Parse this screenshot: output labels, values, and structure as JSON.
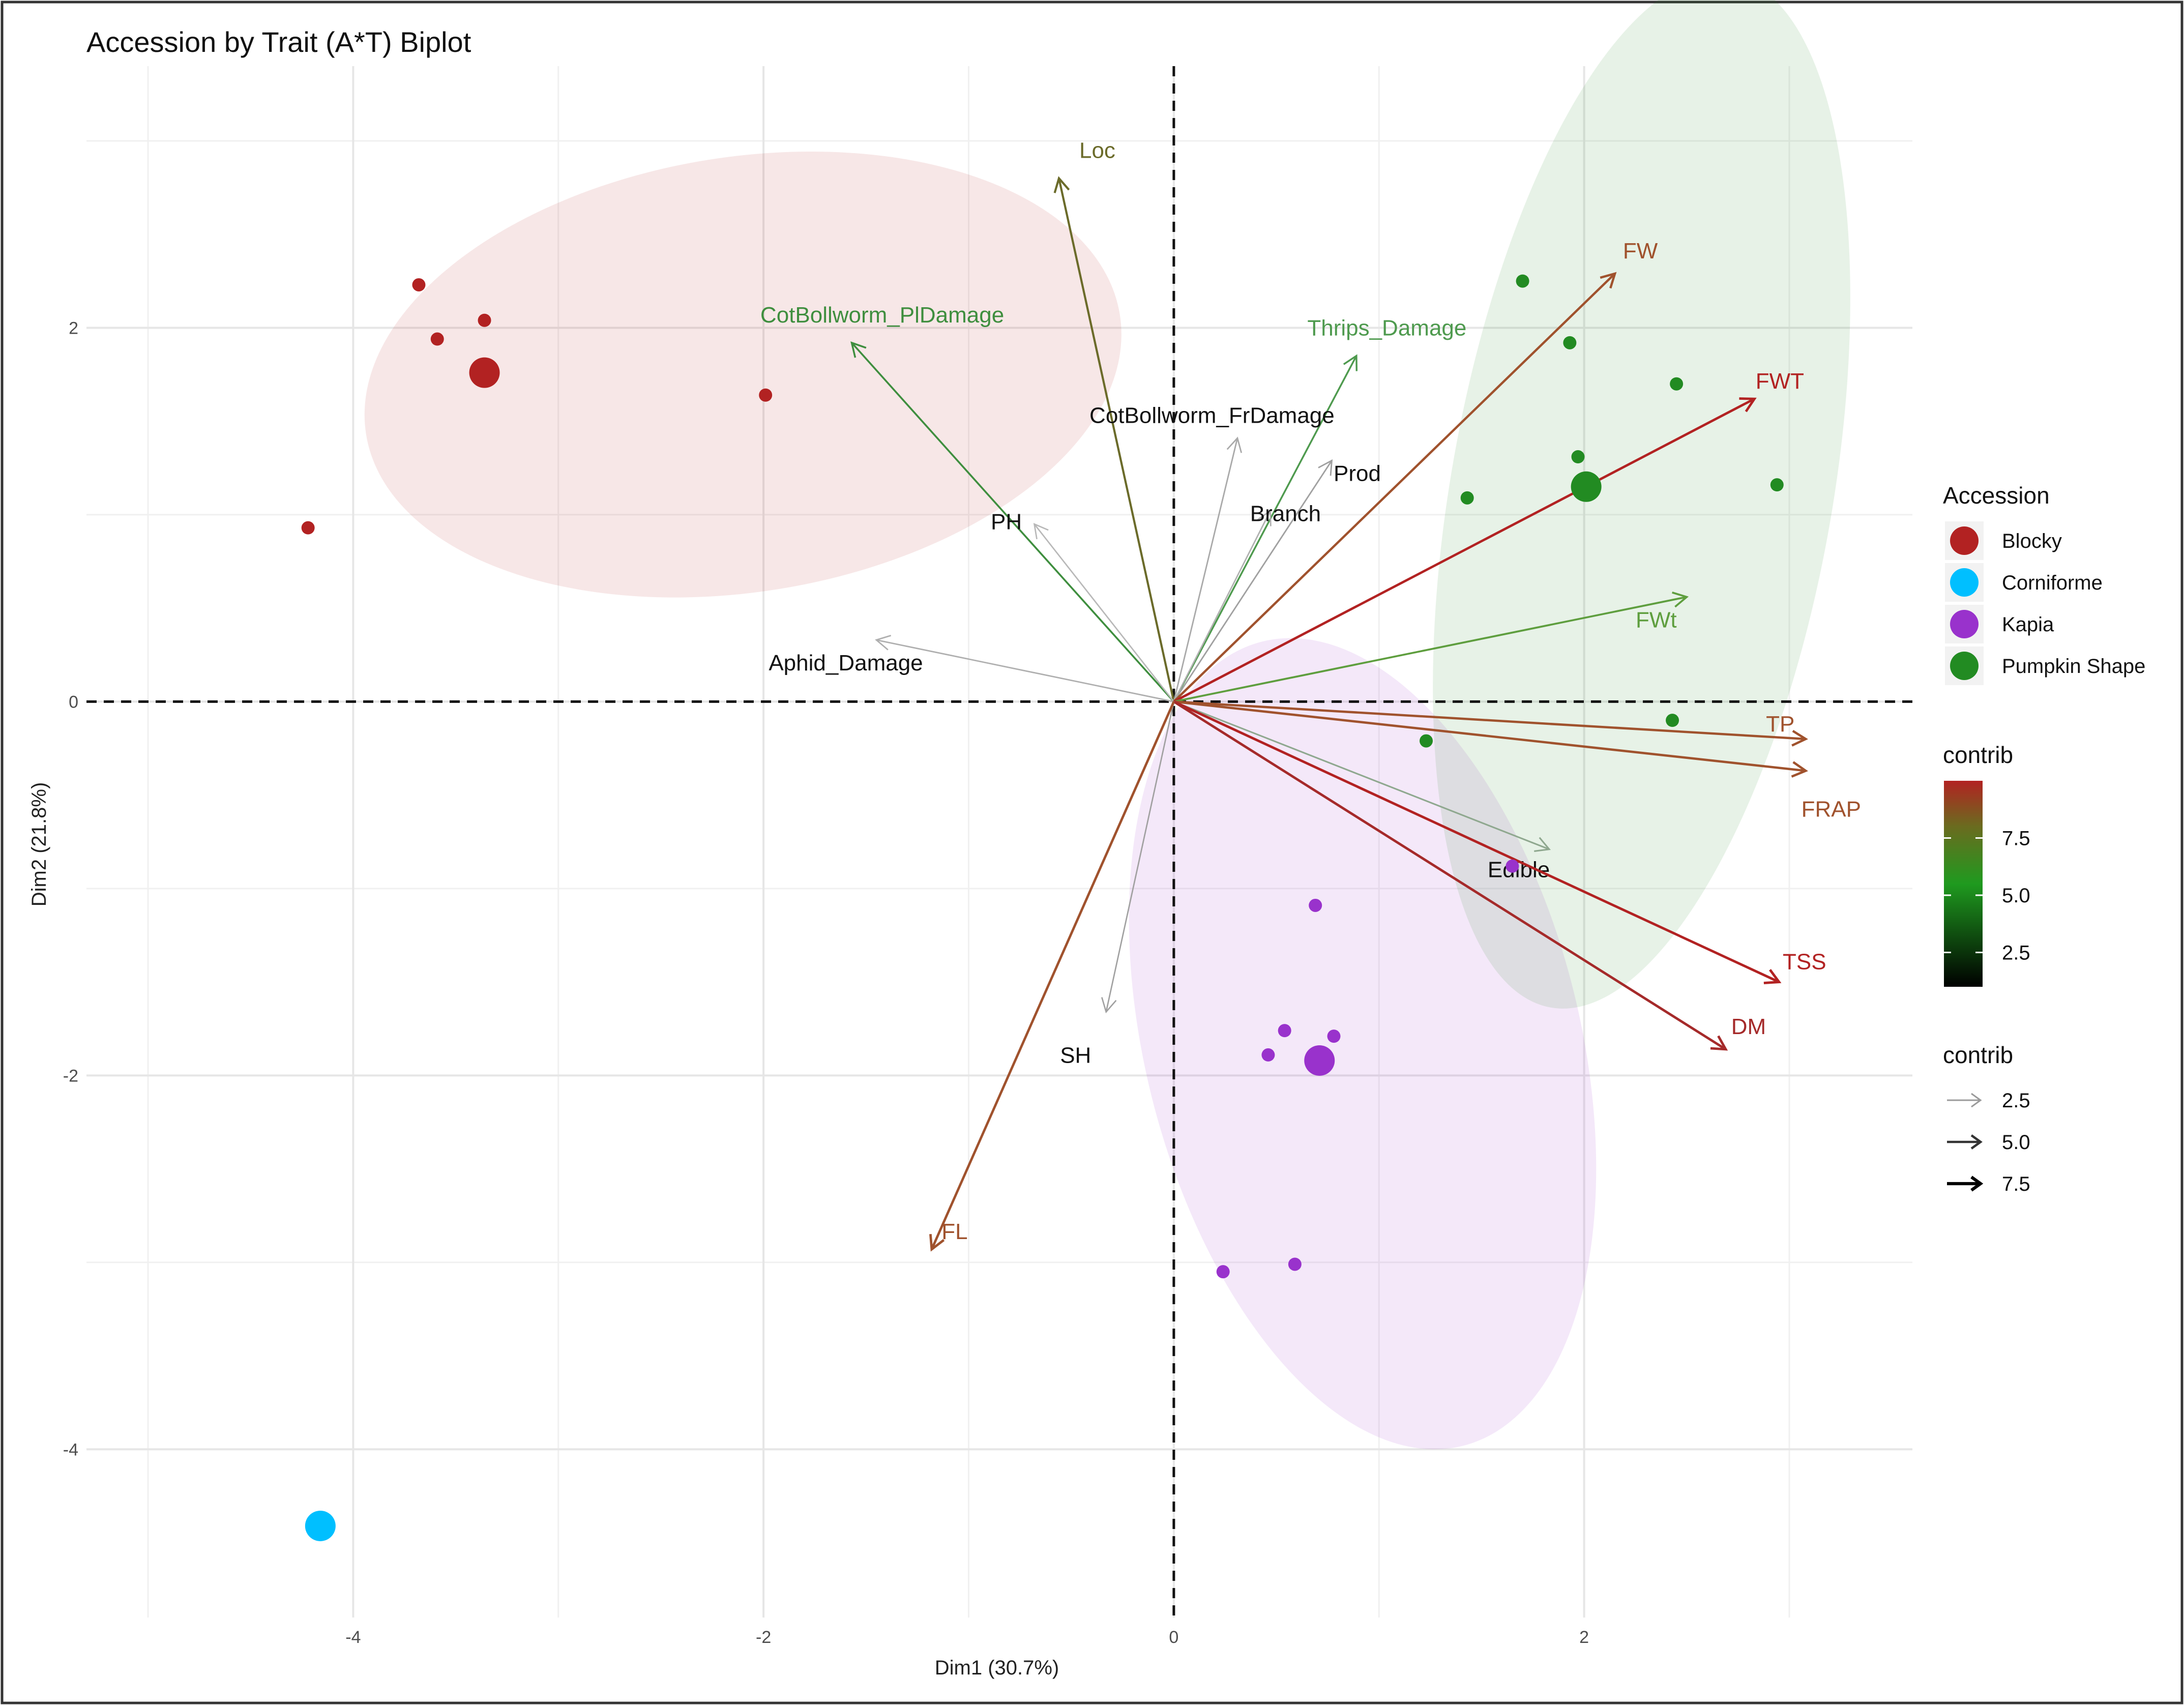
{
  "chart_data": {
    "type": "scatter",
    "title": "Accession by Trait (A*T) Biplot",
    "xlabel": "Dim1 (30.7%)",
    "ylabel": "Dim2 (21.8%)",
    "xlim": [
      -5.3,
      3.6
    ],
    "ylim": [
      -4.9,
      3.4
    ],
    "xticks": [
      -4,
      -2,
      0,
      2
    ],
    "yticks": [
      -4,
      -2,
      0,
      2
    ],
    "tick_labels_x": [
      "-4",
      "-2",
      "0",
      "2"
    ],
    "tick_labels_y": [
      "-4",
      "-2",
      "0",
      "2"
    ],
    "grid": true,
    "reference_lines": {
      "x": 0,
      "y": 0
    },
    "groups": [
      {
        "name": "Blocky",
        "color": "#B22222",
        "points": [
          [
            -3.68,
            2.23
          ],
          [
            -3.59,
            1.94
          ],
          [
            -3.36,
            2.04
          ],
          [
            -1.99,
            1.64
          ],
          [
            -4.22,
            0.93
          ]
        ],
        "centroid": [
          -3.36,
          1.76
        ],
        "ellipse": {
          "cx": -2.1,
          "cy": 1.75,
          "rx": 1.86,
          "ry": 1.06,
          "angle_deg": 9
        }
      },
      {
        "name": "Corniforme",
        "color": "#00BFFF",
        "points": [],
        "centroid": [
          -4.16,
          -4.41
        ],
        "ellipse": null
      },
      {
        "name": "Kapia",
        "color": "#9932CC",
        "points": [
          [
            0.69,
            -1.09
          ],
          [
            0.54,
            -1.76
          ],
          [
            0.46,
            -1.89
          ],
          [
            0.78,
            -1.79
          ],
          [
            0.24,
            -3.05
          ],
          [
            0.59,
            -3.01
          ],
          [
            1.65,
            -0.88
          ]
        ],
        "centroid": [
          0.71,
          -1.92
        ],
        "ellipse": {
          "cx": 0.92,
          "cy": -1.83,
          "rx": 1.06,
          "ry": 2.02,
          "angle_deg": 14
        }
      },
      {
        "name": "Pumpkin Shape",
        "color": "#228B22",
        "points": [
          [
            1.7,
            2.25
          ],
          [
            1.93,
            1.92
          ],
          [
            2.45,
            1.7
          ],
          [
            1.97,
            1.31
          ],
          [
            1.43,
            1.09
          ],
          [
            2.94,
            1.16
          ],
          [
            2.43,
            -0.1
          ],
          [
            1.23,
            -0.21
          ]
        ],
        "centroid": [
          2.01,
          1.15
        ],
        "ellipse": {
          "cx": 2.28,
          "cy": 1.12,
          "rx": 0.93,
          "ry": 2.55,
          "angle_deg": -10
        }
      }
    ],
    "variables": [
      {
        "name": "Loc",
        "x": -0.56,
        "y": 2.8,
        "contrib": 7.0,
        "color": "#6B6B2A"
      },
      {
        "name": "CotBollworm_PlDamage",
        "x": -1.57,
        "y": 1.92,
        "contrib": 4.8,
        "color": "#3E8E3E"
      },
      {
        "name": "Thrips_Damage",
        "x": 0.89,
        "y": 1.85,
        "contrib": 4.5,
        "color": "#4E9A4E"
      },
      {
        "name": "CotBollworm_FrDamage",
        "x": 0.31,
        "y": 1.41,
        "contrib": 2.2,
        "color": "#A9A9A9"
      },
      {
        "name": "Prod",
        "x": 0.77,
        "y": 1.29,
        "contrib": 2.4,
        "color": "#A0A0A0"
      },
      {
        "name": "Branch",
        "x": 0.47,
        "y": 1.02,
        "contrib": 2.0,
        "color": "#B0B0B0"
      },
      {
        "name": "PH",
        "x": -0.68,
        "y": 0.95,
        "contrib": 1.8,
        "color": "#B8B8B8"
      },
      {
        "name": "Aphid_Damage",
        "x": -1.45,
        "y": 0.33,
        "contrib": 2.1,
        "color": "#AFAFAF"
      },
      {
        "name": "FW",
        "x": 2.15,
        "y": 2.29,
        "contrib": 8.2,
        "color": "#A0522D"
      },
      {
        "name": "FWT",
        "x": 2.83,
        "y": 1.62,
        "contrib": 9.0,
        "color": "#B22222"
      },
      {
        "name": "FWt",
        "x": 2.5,
        "y": 0.56,
        "contrib": 5.6,
        "color": "#5E9E3E"
      },
      {
        "name": "TP",
        "x": 3.08,
        "y": -0.2,
        "contrib": 8.3,
        "color": "#A0522D"
      },
      {
        "name": "FRAP",
        "x": 3.08,
        "y": -0.37,
        "contrib": 8.5,
        "color": "#A0522D"
      },
      {
        "name": "Edible",
        "x": 1.83,
        "y": -0.79,
        "contrib": 3.3,
        "color": "#8FA88F"
      },
      {
        "name": "TSS",
        "x": 2.95,
        "y": -1.5,
        "contrib": 9.6,
        "color": "#B22222"
      },
      {
        "name": "DM",
        "x": 2.69,
        "y": -1.86,
        "contrib": 9.3,
        "color": "#A52A2A"
      },
      {
        "name": "SH",
        "x": -0.33,
        "y": -1.66,
        "contrib": 1.7,
        "color": "#A0A0A0"
      },
      {
        "name": "FL",
        "x": -1.18,
        "y": -2.93,
        "contrib": 9.1,
        "color": "#A0522D"
      }
    ],
    "legend": {
      "accession_title": "Accession",
      "accession_items": [
        "Blocky",
        "Corniforme",
        "Kapia",
        "Pumpkin Shape"
      ],
      "color_title": "contrib",
      "color_ticks": [
        "7.5",
        "5.0",
        "2.5"
      ],
      "color_tick_values": [
        7.5,
        5.0,
        2.5
      ],
      "color_range": [
        1.0,
        10.0
      ],
      "width_title": "contrib",
      "width_items": [
        "2.5",
        "5.0",
        "7.5"
      ],
      "placement": "right"
    }
  }
}
